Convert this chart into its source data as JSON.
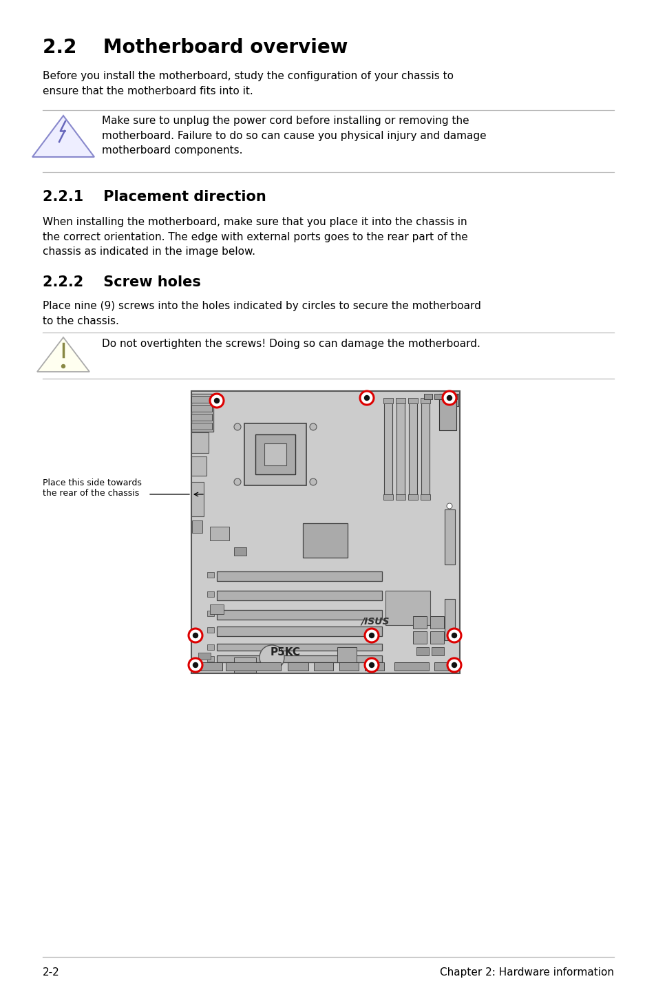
{
  "title": "2.2    Motherboard overview",
  "intro_text": "Before you install the motherboard, study the configuration of your chassis to\nensure that the motherboard fits into it.",
  "warning_text": "Make sure to unplug the power cord before installing or removing the\nmotherboard. Failure to do so can cause you physical injury and damage\nmotherboard components.",
  "section221_title": "2.2.1    Placement direction",
  "section221_text": "When installing the motherboard, make sure that you place it into the chassis in\nthe correct orientation. The edge with external ports goes to the rear part of the\nchassis as indicated in the image below.",
  "section222_title": "2.2.2    Screw holes",
  "section222_text": "Place nine (9) screws into the holes indicated by circles to secure the motherboard\nto the chassis.",
  "caution_text": "Do not overtighten the screws! Doing so can damage the motherboard.",
  "side_label": "Place this side towards\nthe rear of the chassis",
  "board_label": "P5KC",
  "asus_label": "/ISUS",
  "footer_left": "2-2",
  "footer_right": "Chapter 2: Hardware information",
  "bg_color": "#ffffff",
  "text_color": "#000000",
  "line_color": "#bbbbbb",
  "board_color": "#cccccc",
  "board_edge_color": "#555555",
  "screw_color": "#dd0000",
  "warn_tri_fill": "#eeeeff",
  "warn_tri_edge": "#8888cc",
  "warn_bolt_color": "#6666bb",
  "caut_tri_fill": "#fffff0",
  "caut_tri_edge": "#aaaaaa",
  "caut_text_color": "#666633",
  "component_dark": "#999999",
  "component_mid": "#b0b0b0",
  "component_light": "#c0c0c0",
  "slot_color": "#aaaaaa",
  "slot_edge": "#555555"
}
